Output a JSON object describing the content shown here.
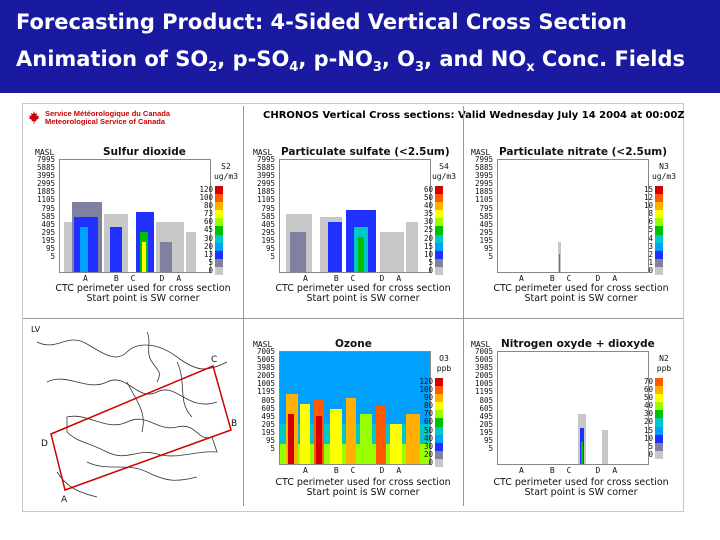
{
  "header": {
    "line1": "Forecasting Product:  4-Sided Vertical Cross Section",
    "line2_parts": [
      "Animation of SO",
      "2",
      ", p-SO",
      "4",
      ", p-NO",
      "3",
      ", O",
      "3",
      ", and NO",
      "x",
      " Conc. Fields"
    ]
  },
  "figure": {
    "logo_line1": "Service Météorologique du Canada",
    "logo_line2": "Meteorological Service of Canada",
    "main_title": "CHRONOS Vertical Cross sections: Valid Wednesday July 14 2004 at 00:00Z",
    "caption1": "CTC perimeter used for cross section",
    "caption2": "Start point is SW corner",
    "masl": "MASL",
    "top_levels": [
      "7995",
      "5885",
      "3995",
      "2995",
      "1885",
      "1105",
      "795",
      "585",
      "405",
      "295",
      "195",
      "95",
      "5"
    ],
    "bottom_levels": [
      "7005",
      "5005",
      "3985",
      "2005",
      "1005",
      "1195",
      "805",
      "605",
      "495",
      "205",
      "195",
      "95",
      "5"
    ],
    "points_top": [
      "A",
      "B",
      "C",
      "D",
      "A"
    ],
    "panels": [
      {
        "title": "Sulfur dioxide",
        "species": "S2",
        "units": "ug/m3",
        "legend": [
          "120",
          "100",
          "80",
          "73",
          "60",
          "45",
          "30",
          "20",
          "13",
          "5",
          "0"
        ]
      },
      {
        "title": "Particulate sulfate (<2.5um)",
        "species": "S4",
        "units": "ug/m3",
        "legend": [
          "60",
          "50",
          "40",
          "35",
          "30",
          "25",
          "20",
          "15",
          "10",
          "5",
          "0"
        ]
      },
      {
        "title": "Particulate nitrate (<2.5um)",
        "species": "N3",
        "units": "ug/m3",
        "legend": [
          "15",
          "12",
          "10",
          "8",
          "6",
          "5",
          "4",
          "3",
          "2",
          "1",
          "0"
        ]
      },
      {
        "title": "Ozone",
        "species": "O3",
        "units": "ppb",
        "legend": [
          "120",
          "100",
          "90",
          "80",
          "70",
          "60",
          "50",
          "40",
          "30",
          "20",
          "0"
        ]
      },
      {
        "title": "Nitrogen oxyde + dioxyde",
        "species": "N2",
        "units": "ppb",
        "legend": [
          "70",
          "60",
          "50",
          "40",
          "30",
          "20",
          "15",
          "10",
          "5",
          "0"
        ]
      }
    ],
    "map_labels": {
      "a": "A",
      "b": "B",
      "c": "C",
      "d": "D",
      "lv": "LV"
    },
    "legend_colors": [
      "#d40000",
      "#ff5a00",
      "#ffb000",
      "#ffff00",
      "#9aff00",
      "#00c000",
      "#00c8c8",
      "#00a0ff",
      "#2030ff",
      "#8080a0",
      "#c8c8c8"
    ]
  }
}
